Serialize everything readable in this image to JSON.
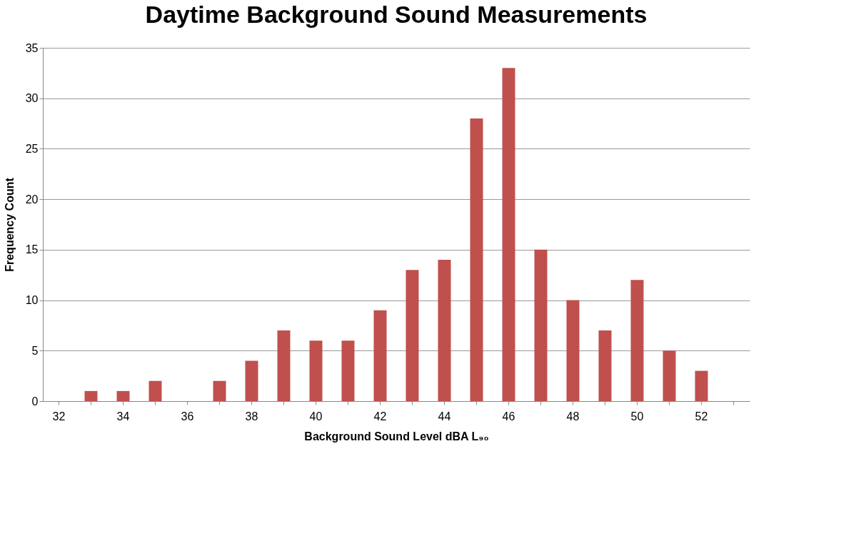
{
  "chart_data": {
    "type": "bar",
    "title": "Daytime Background Sound Measurements",
    "xlabel": "Background Sound Level dBA L₉₀",
    "ylabel": "Frequency Count",
    "categories": [
      "32",
      null,
      "34",
      null,
      "36",
      null,
      "38",
      null,
      "40",
      null,
      "42",
      null,
      "44",
      null,
      "46",
      null,
      "48",
      null,
      "50",
      null,
      "52",
      null
    ],
    "series": [
      {
        "color": "#c0504d",
        "values": [
          0,
          1,
          1,
          2,
          0,
          2,
          4,
          7,
          6,
          6,
          9,
          13,
          14,
          28,
          33,
          15,
          10,
          7,
          12,
          5,
          3,
          0
        ]
      }
    ],
    "ylim": [
      0,
      35
    ],
    "yticks": [
      0,
      5,
      10,
      15,
      20,
      25,
      30,
      35
    ],
    "grid": "y",
    "legend": false
  }
}
